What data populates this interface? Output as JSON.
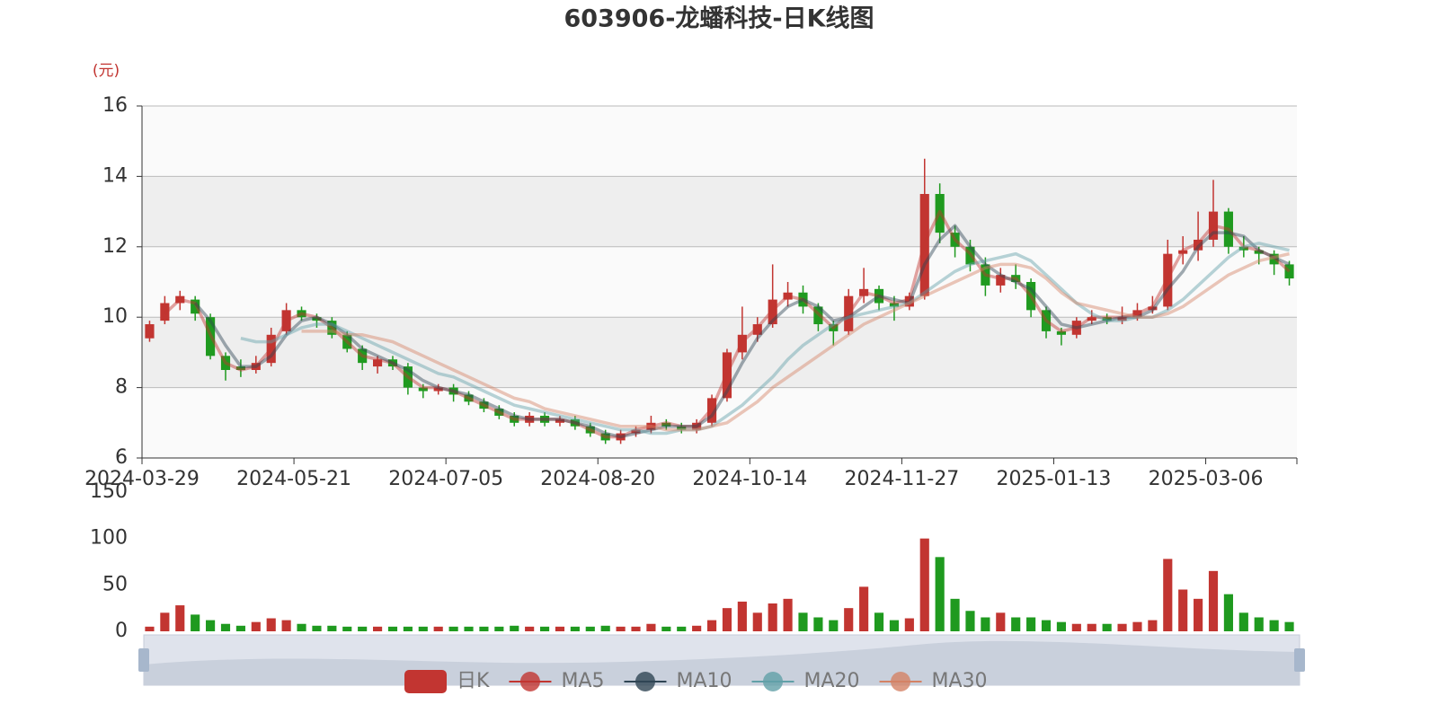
{
  "chart_data": [
    {
      "type": "candlestick",
      "title": "603906-龙蟠科技-日K线图",
      "y_unit": "(元)",
      "categories": [
        "2024-03-29",
        null,
        null,
        null,
        null,
        null,
        null,
        null,
        null,
        null,
        "2024-05-21",
        null,
        null,
        null,
        null,
        null,
        null,
        null,
        null,
        null,
        "2024-07-05",
        null,
        null,
        null,
        null,
        null,
        null,
        null,
        null,
        null,
        "2024-08-20",
        null,
        null,
        null,
        null,
        null,
        null,
        null,
        null,
        null,
        "2024-10-14",
        null,
        null,
        null,
        null,
        null,
        null,
        null,
        null,
        null,
        "2024-11-27",
        null,
        null,
        null,
        null,
        null,
        null,
        null,
        null,
        null,
        "2025-01-13",
        null,
        null,
        null,
        null,
        null,
        null,
        null,
        null,
        null,
        "2025-03-06",
        null,
        null,
        null,
        null,
        null
      ],
      "ylim": [
        6,
        16
      ],
      "yticks": [
        6,
        8,
        10,
        12,
        14,
        16
      ],
      "grid": true,
      "split_area": true,
      "series": [
        {
          "name": "日K",
          "type": "candlestick",
          "color": "#c23531",
          "down_color": "#1f9a1f",
          "values": [
            [
              9.4,
              9.8,
              9.3,
              9.9
            ],
            [
              9.9,
              10.4,
              9.8,
              10.6
            ],
            [
              10.4,
              10.6,
              10.2,
              10.75
            ],
            [
              10.5,
              10.1,
              9.9,
              10.6
            ],
            [
              10.0,
              8.9,
              8.8,
              10.1
            ],
            [
              8.9,
              8.5,
              8.2,
              9.0
            ],
            [
              8.6,
              8.5,
              8.3,
              8.8
            ],
            [
              8.5,
              8.7,
              8.4,
              8.9
            ],
            [
              8.7,
              9.5,
              8.6,
              9.7
            ],
            [
              9.6,
              10.2,
              9.5,
              10.4
            ],
            [
              10.2,
              10.0,
              9.9,
              10.3
            ],
            [
              10.0,
              9.9,
              9.7,
              10.1
            ],
            [
              9.9,
              9.5,
              9.4,
              10.0
            ],
            [
              9.5,
              9.1,
              9.0,
              9.6
            ],
            [
              9.1,
              8.7,
              8.5,
              9.2
            ],
            [
              8.6,
              8.8,
              8.4,
              8.9
            ],
            [
              8.8,
              8.6,
              8.5,
              8.9
            ],
            [
              8.6,
              8.0,
              7.8,
              8.7
            ],
            [
              8.0,
              7.9,
              7.7,
              8.1
            ],
            [
              7.9,
              8.0,
              7.8,
              8.1
            ],
            [
              8.0,
              7.8,
              7.6,
              8.1
            ],
            [
              7.8,
              7.6,
              7.5,
              7.9
            ],
            [
              7.6,
              7.4,
              7.3,
              7.7
            ],
            [
              7.4,
              7.2,
              7.1,
              7.5
            ],
            [
              7.2,
              7.0,
              6.9,
              7.3
            ],
            [
              7.0,
              7.2,
              6.9,
              7.3
            ],
            [
              7.2,
              7.0,
              6.9,
              7.3
            ],
            [
              7.0,
              7.1,
              6.9,
              7.2
            ],
            [
              7.1,
              6.9,
              6.8,
              7.2
            ],
            [
              6.9,
              6.7,
              6.6,
              7.0
            ],
            [
              6.7,
              6.5,
              6.4,
              6.8
            ],
            [
              6.5,
              6.7,
              6.4,
              6.8
            ],
            [
              6.7,
              6.8,
              6.6,
              6.9
            ],
            [
              6.8,
              7.0,
              6.7,
              7.2
            ],
            [
              7.0,
              6.9,
              6.8,
              7.1
            ],
            [
              6.9,
              6.8,
              6.7,
              7.0
            ],
            [
              6.8,
              7.0,
              6.7,
              7.1
            ],
            [
              7.0,
              7.7,
              6.9,
              7.8
            ],
            [
              7.7,
              9.0,
              7.6,
              9.1
            ],
            [
              9.0,
              9.5,
              8.8,
              10.3
            ],
            [
              9.5,
              9.8,
              9.3,
              10.0
            ],
            [
              9.8,
              10.5,
              9.7,
              11.5
            ],
            [
              10.5,
              10.7,
              10.3,
              11.0
            ],
            [
              10.7,
              10.3,
              10.1,
              10.9
            ],
            [
              10.3,
              9.8,
              9.6,
              10.4
            ],
            [
              9.8,
              9.6,
              9.2,
              9.9
            ],
            [
              9.6,
              10.6,
              9.5,
              10.8
            ],
            [
              10.6,
              10.8,
              10.4,
              11.4
            ],
            [
              10.8,
              10.4,
              10.2,
              10.9
            ],
            [
              10.4,
              10.3,
              9.9,
              10.6
            ],
            [
              10.3,
              10.6,
              10.2,
              10.7
            ],
            [
              10.6,
              13.5,
              10.5,
              14.5
            ],
            [
              13.5,
              12.4,
              12.1,
              13.8
            ],
            [
              12.4,
              12.0,
              11.7,
              12.6
            ],
            [
              12.0,
              11.5,
              11.3,
              12.2
            ],
            [
              11.5,
              10.9,
              10.6,
              11.7
            ],
            [
              10.9,
              11.2,
              10.7,
              11.4
            ],
            [
              11.2,
              11.0,
              10.8,
              11.5
            ],
            [
              11.0,
              10.2,
              10.0,
              11.1
            ],
            [
              10.2,
              9.6,
              9.4,
              10.3
            ],
            [
              9.6,
              9.5,
              9.2,
              9.7
            ],
            [
              9.5,
              9.9,
              9.4,
              10.0
            ],
            [
              9.9,
              10.0,
              9.8,
              10.2
            ],
            [
              10.0,
              9.9,
              9.8,
              10.1
            ],
            [
              9.9,
              10.0,
              9.8,
              10.3
            ],
            [
              10.0,
              10.2,
              9.9,
              10.4
            ],
            [
              10.2,
              10.3,
              10.1,
              10.6
            ],
            [
              10.3,
              11.8,
              10.2,
              12.2
            ],
            [
              11.8,
              11.9,
              11.5,
              12.3
            ],
            [
              11.9,
              12.2,
              11.6,
              13.0
            ],
            [
              12.2,
              13.0,
              12.0,
              13.9
            ],
            [
              13.0,
              12.0,
              11.8,
              13.1
            ],
            [
              12.0,
              11.9,
              11.7,
              12.3
            ],
            [
              11.9,
              11.8,
              11.5,
              12.0
            ],
            [
              11.8,
              11.5,
              11.2,
              11.9
            ],
            [
              11.5,
              11.1,
              10.9,
              11.6
            ]
          ]
        },
        {
          "name": "MA5",
          "type": "line",
          "color": "#c23531",
          "values": [
            null,
            10.1,
            10.5,
            10.4,
            9.5,
            8.7,
            8.5,
            8.6,
            9.1,
            9.9,
            10.1,
            10.0,
            9.7,
            9.3,
            8.9,
            8.8,
            8.7,
            8.3,
            8.0,
            8.0,
            7.9,
            7.7,
            7.5,
            7.3,
            7.1,
            7.1,
            7.1,
            7.1,
            7.0,
            6.8,
            6.6,
            6.6,
            6.8,
            6.9,
            7.0,
            6.9,
            6.9,
            7.4,
            8.4,
            9.3,
            9.7,
            10.2,
            10.6,
            10.5,
            10.1,
            9.7,
            10.1,
            10.7,
            10.6,
            10.4,
            10.5,
            12.1,
            13.0,
            12.2,
            11.8,
            11.2,
            11.1,
            11.1,
            10.6,
            9.9,
            9.6,
            9.7,
            10.0,
            10.0,
            10.0,
            10.1,
            10.3,
            11.1,
            11.9,
            12.1,
            12.6,
            12.5,
            12.0,
            11.9,
            11.7,
            11.3
          ]
        },
        {
          "name": "MA10",
          "type": "line",
          "color": "#2f4554",
          "values": [
            null,
            null,
            null,
            10.4,
            9.9,
            9.2,
            8.6,
            8.6,
            8.9,
            9.5,
            9.9,
            10.0,
            9.8,
            9.5,
            9.1,
            8.9,
            8.7,
            8.5,
            8.2,
            8.0,
            7.9,
            7.8,
            7.6,
            7.4,
            7.2,
            7.1,
            7.1,
            7.1,
            7.0,
            6.9,
            6.7,
            6.6,
            6.7,
            6.8,
            6.9,
            6.9,
            6.9,
            7.2,
            7.9,
            8.7,
            9.4,
            9.9,
            10.3,
            10.5,
            10.3,
            9.9,
            10.0,
            10.3,
            10.6,
            10.5,
            10.4,
            11.5,
            12.2,
            12.6,
            12.0,
            11.5,
            11.2,
            11.0,
            10.8,
            10.3,
            9.8,
            9.7,
            9.8,
            9.9,
            10.0,
            10.0,
            10.2,
            10.8,
            11.3,
            12.0,
            12.4,
            12.4,
            12.3,
            11.9,
            11.7,
            11.5
          ]
        },
        {
          "name": "MA20",
          "type": "line",
          "color": "#61a0a8",
          "values": [
            null,
            null,
            null,
            null,
            null,
            null,
            9.4,
            9.3,
            9.3,
            9.5,
            9.7,
            9.8,
            9.8,
            9.6,
            9.4,
            9.2,
            9.0,
            8.8,
            8.6,
            8.4,
            8.3,
            8.1,
            7.9,
            7.7,
            7.5,
            7.4,
            7.3,
            7.2,
            7.1,
            7.0,
            6.9,
            6.8,
            6.8,
            6.7,
            6.7,
            6.8,
            6.8,
            6.9,
            7.2,
            7.5,
            7.9,
            8.3,
            8.8,
            9.2,
            9.5,
            9.8,
            10.0,
            10.1,
            10.2,
            10.3,
            10.4,
            10.7,
            11.0,
            11.3,
            11.5,
            11.6,
            11.7,
            11.8,
            11.6,
            11.2,
            10.8,
            10.4,
            10.1,
            9.9,
            9.9,
            10.0,
            10.0,
            10.2,
            10.5,
            10.9,
            11.3,
            11.7,
            12.0,
            12.1,
            12.0,
            11.9
          ]
        },
        {
          "name": "MA30",
          "type": "line",
          "color": "#d48265",
          "values": [
            null,
            null,
            null,
            null,
            null,
            null,
            null,
            null,
            null,
            null,
            9.6,
            9.6,
            9.6,
            9.5,
            9.5,
            9.4,
            9.3,
            9.1,
            8.9,
            8.7,
            8.5,
            8.3,
            8.1,
            7.9,
            7.7,
            7.6,
            7.4,
            7.3,
            7.2,
            7.1,
            7.0,
            6.9,
            6.9,
            6.9,
            6.8,
            6.8,
            6.8,
            6.9,
            7.0,
            7.3,
            7.6,
            8.0,
            8.3,
            8.6,
            8.9,
            9.2,
            9.5,
            9.8,
            10.0,
            10.2,
            10.4,
            10.6,
            10.8,
            11.0,
            11.2,
            11.4,
            11.5,
            11.5,
            11.4,
            11.1,
            10.7,
            10.4,
            10.3,
            10.2,
            10.1,
            10.0,
            10.0,
            10.1,
            10.3,
            10.6,
            10.9,
            11.2,
            11.4,
            11.6,
            11.7,
            11.8
          ]
        }
      ]
    },
    {
      "type": "bar",
      "ylim": [
        0,
        150
      ],
      "yticks": [
        0,
        50,
        100,
        150
      ],
      "values": [
        5,
        20,
        28,
        18,
        12,
        8,
        6,
        10,
        14,
        12,
        8,
        6,
        6,
        5,
        5,
        5,
        5,
        5,
        5,
        5,
        5,
        5,
        5,
        5,
        6,
        5,
        5,
        5,
        5,
        5,
        6,
        5,
        5,
        8,
        5,
        5,
        6,
        12,
        25,
        32,
        20,
        30,
        35,
        20,
        15,
        12,
        25,
        48,
        20,
        12,
        14,
        100,
        80,
        35,
        22,
        15,
        20,
        15,
        15,
        12,
        10,
        8,
        8,
        8,
        8,
        10,
        12,
        78,
        45,
        35,
        65,
        40,
        20,
        15,
        12,
        10
      ]
    }
  ]
}
